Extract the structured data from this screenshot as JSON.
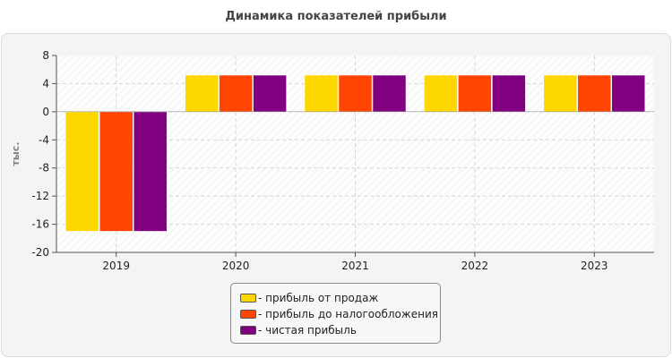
{
  "chart_data": {
    "type": "bar",
    "title": "Динамика показателей прибыли",
    "ylabel": "тыс.",
    "xlabel": "",
    "categories": [
      "2019",
      "2020",
      "2021",
      "2022",
      "2023"
    ],
    "ylim": [
      -20,
      8
    ],
    "yticks": [
      8,
      4,
      0,
      -4,
      -8,
      -12,
      -16,
      -20
    ],
    "grid": true,
    "legend_position": "bottom",
    "series": [
      {
        "name": "- прибыль от продаж",
        "color": "#ffd700",
        "values": [
          -17,
          5.2,
          5.2,
          5.2,
          5.2
        ]
      },
      {
        "name": "- прибыль до налогообложения",
        "color": "#ff4500",
        "values": [
          -17,
          5.2,
          5.2,
          5.2,
          5.2
        ]
      },
      {
        "name": "- чистая прибыль",
        "color": "#800080",
        "values": [
          -17,
          5.2,
          5.2,
          5.2,
          5.2
        ]
      }
    ]
  }
}
